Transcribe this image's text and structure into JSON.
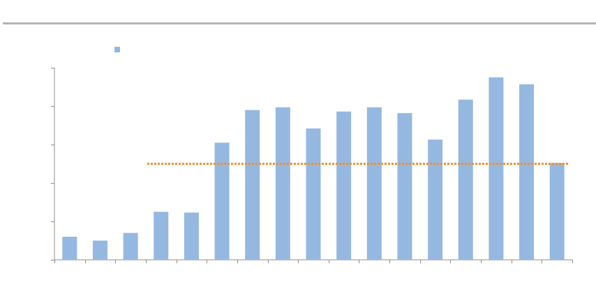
{
  "chart_data": {
    "type": "bar",
    "categories": [
      "",
      "",
      "",
      "",
      "",
      "",
      "",
      "",
      "",
      "",
      "",
      "",
      "",
      "",
      "",
      "",
      ""
    ],
    "series": [
      {
        "name": "",
        "values": [
          0.6,
          0.5,
          0.7,
          1.25,
          1.23,
          3.05,
          3.9,
          3.97,
          3.42,
          3.86,
          3.97,
          3.82,
          3.13,
          4.17,
          4.75,
          4.57,
          2.52
        ]
      }
    ],
    "reference_line": {
      "value": 2.5,
      "from_category_index": 3,
      "to_category_index": 16
    },
    "title": "",
    "xlabel": "",
    "ylabel": "",
    "ylim": [
      0,
      5
    ],
    "y_ticks": [
      0,
      1,
      2,
      3,
      4,
      5
    ],
    "grid": false,
    "legend_position": "top-left",
    "colors": {
      "bar": "#95b8e1",
      "reference_line": "#f0902e",
      "axis": "#8c8c8c",
      "rule": "#b4b4b4"
    }
  }
}
